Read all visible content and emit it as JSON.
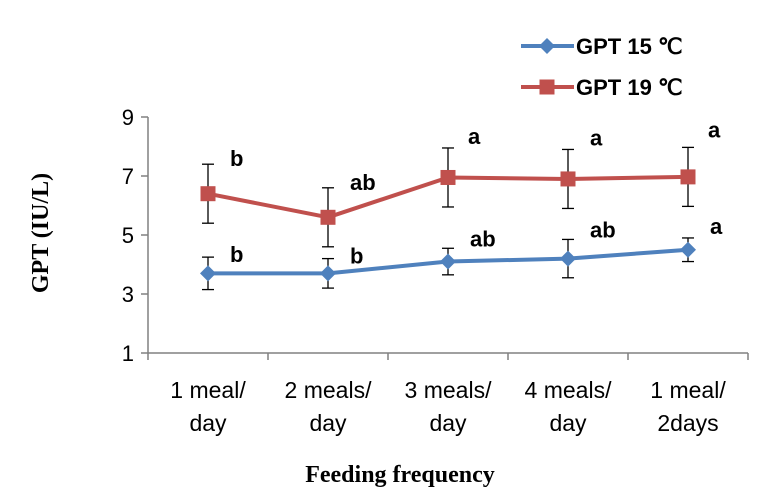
{
  "chart_data": {
    "type": "line",
    "xlabel": "Feeding frequency",
    "ylabel": "GPT (IU/L)",
    "ylim": [
      1,
      9
    ],
    "yticks": [
      1,
      3,
      5,
      7,
      9
    ],
    "categories": [
      [
        "1 meal/",
        "day"
      ],
      [
        "2 meals/",
        "day"
      ],
      [
        "3 meals/",
        "day"
      ],
      [
        "4 meals/",
        "day"
      ],
      [
        "1 meal/",
        "2days"
      ]
    ],
    "legend_position": "top-right",
    "series": [
      {
        "name": "GPT 15 ℃",
        "color": "#4f81bd",
        "marker": "diamond",
        "values": [
          3.7,
          3.7,
          4.1,
          4.2,
          4.5
        ],
        "errors": [
          0.55,
          0.5,
          0.45,
          0.65,
          0.4
        ],
        "labels": [
          "b",
          "b",
          "ab",
          "ab",
          "a"
        ]
      },
      {
        "name": "GPT 19 ℃",
        "color": "#c0504d",
        "marker": "square",
        "values": [
          6.4,
          5.6,
          6.95,
          6.9,
          6.97
        ],
        "errors": [
          1.0,
          1.0,
          1.0,
          1.0,
          1.0
        ],
        "labels": [
          "b",
          "ab",
          "a",
          "a",
          "a"
        ]
      }
    ]
  }
}
